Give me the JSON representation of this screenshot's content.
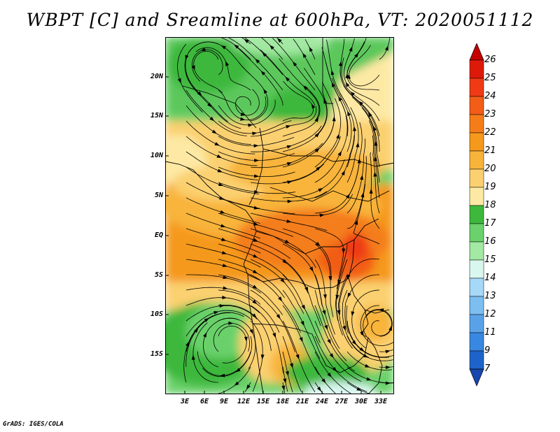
{
  "title": "WBPT [C] and Sreamline at 600hPa, VT: 2020051112",
  "footer": "GrADS: IGES/COLA",
  "map": {
    "lat_ticks": [
      "20N",
      "15N",
      "10N",
      "5N",
      "EQ",
      "5S",
      "10S",
      "15S"
    ],
    "lon_ticks": [
      "3E",
      "6E",
      "9E",
      "12E",
      "15E",
      "18E",
      "21E",
      "24E",
      "27E",
      "30E",
      "33E"
    ],
    "lon_range": [
      0,
      35
    ],
    "lat_range": [
      -20,
      24.5
    ]
  },
  "colorbar": {
    "labels": [
      "26",
      "25",
      "24",
      "23",
      "22",
      "21",
      "20",
      "19",
      "18",
      "17",
      "16",
      "15",
      "14",
      "13",
      "12",
      "11",
      "9",
      "7"
    ],
    "colors": [
      "#c40000",
      "#dd1a0a",
      "#ef3a15",
      "#f25d18",
      "#f47d1a",
      "#f5991c",
      "#f8b43a",
      "#fbd070",
      "#fde9a4",
      "#3db83d",
      "#6bd16b",
      "#a3e8a3",
      "#d9f7ef",
      "#a6d8f7",
      "#7cbef0",
      "#5aa2e8",
      "#3887e0",
      "#1e63c9",
      "#1846b0"
    ]
  }
}
